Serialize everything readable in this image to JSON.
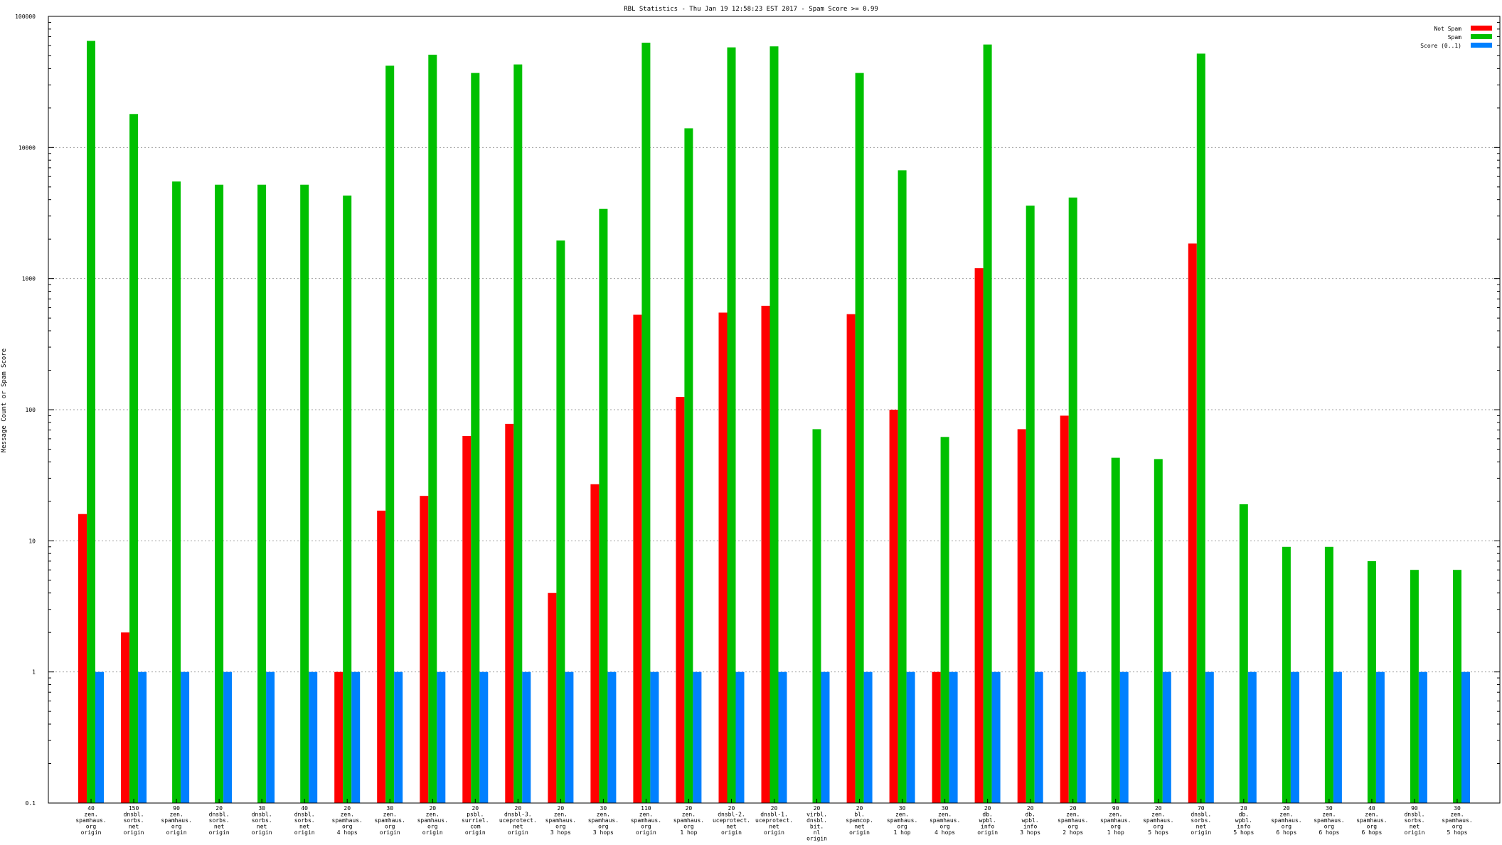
{
  "chart_data": {
    "type": "bar",
    "title": "RBL Statistics - Thu Jan 19 12:58:23 EST 2017 - Spam Score >= 0.99",
    "xlabel": "",
    "ylabel": "Message Count or Spam Score",
    "scale": "log",
    "ylim": [
      0.1,
      100000
    ],
    "yticks": [
      "0.1",
      "1",
      "10",
      "100",
      "1000",
      "10000",
      "100000"
    ],
    "grid": true,
    "legend_position": "top-right",
    "categories": [
      [
        "40",
        "zen.",
        "spamhaus.",
        "org",
        "origin"
      ],
      [
        "150",
        "dnsbl.",
        "sorbs.",
        "net",
        "origin"
      ],
      [
        "90",
        "zen.",
        "spamhaus.",
        "org",
        "origin"
      ],
      [
        "20",
        "dnsbl.",
        "sorbs.",
        "net",
        "origin"
      ],
      [
        "30",
        "dnsbl.",
        "sorbs.",
        "net",
        "origin"
      ],
      [
        "40",
        "dnsbl.",
        "sorbs.",
        "net",
        "origin"
      ],
      [
        "20",
        "zen.",
        "spamhaus.",
        "org",
        "4 hops"
      ],
      [
        "30",
        "zen.",
        "spamhaus.",
        "org",
        "origin"
      ],
      [
        "20",
        "zen.",
        "spamhaus.",
        "org",
        "origin"
      ],
      [
        "20",
        "psbl.",
        "surriel.",
        "com",
        "origin"
      ],
      [
        "20",
        "dnsbl-3.",
        "uceprotect.",
        "net",
        "origin"
      ],
      [
        "20",
        "zen.",
        "spamhaus.",
        "org",
        "3 hops"
      ],
      [
        "30",
        "zen.",
        "spamhaus.",
        "org",
        "3 hops"
      ],
      [
        "110",
        "zen.",
        "spamhaus.",
        "org",
        "origin"
      ],
      [
        "20",
        "zen.",
        "spamhaus.",
        "org",
        "1 hop"
      ],
      [
        "20",
        "dnsbl-2.",
        "uceprotect.",
        "net",
        "origin"
      ],
      [
        "20",
        "dnsbl-1.",
        "uceprotect.",
        "net",
        "origin"
      ],
      [
        "20",
        "virbl.",
        "dnsbl.",
        "bit.",
        "nl",
        "origin"
      ],
      [
        "20",
        "bl.",
        "spamcop.",
        "net",
        "origin"
      ],
      [
        "30",
        "zen.",
        "spamhaus.",
        "org",
        "1 hop"
      ],
      [
        "30",
        "zen.",
        "spamhaus.",
        "org",
        "4 hops"
      ],
      [
        "20",
        "db.",
        "wpbl.",
        "info",
        "origin"
      ],
      [
        "20",
        "db.",
        "wpbl.",
        "info",
        "3 hops"
      ],
      [
        "20",
        "zen.",
        "spamhaus.",
        "org",
        "2 hops"
      ],
      [
        "90",
        "zen.",
        "spamhaus.",
        "org",
        "1 hop"
      ],
      [
        "20",
        "zen.",
        "spamhaus.",
        "org",
        "5 hops"
      ],
      [
        "70",
        "dnsbl.",
        "sorbs.",
        "net",
        "origin"
      ],
      [
        "20",
        "db.",
        "wpbl.",
        "info",
        "5 hops"
      ],
      [
        "20",
        "zen.",
        "spamhaus.",
        "org",
        "6 hops"
      ],
      [
        "30",
        "zen.",
        "spamhaus.",
        "org",
        "6 hops"
      ],
      [
        "40",
        "zen.",
        "spamhaus.",
        "org",
        "6 hops"
      ],
      [
        "90",
        "dnsbl.",
        "sorbs.",
        "net",
        "origin"
      ],
      [
        "30",
        "zen.",
        "spamhaus.",
        "org",
        "5 hops"
      ]
    ],
    "series": [
      {
        "name": "Not Spam",
        "color": "#ff0000",
        "values": [
          16,
          2,
          null,
          null,
          null,
          null,
          1,
          17,
          22,
          63,
          78,
          4,
          27,
          530,
          125,
          550,
          620,
          null,
          535,
          100,
          1,
          1200,
          71,
          90,
          null,
          null,
          1850,
          null,
          null,
          null,
          null,
          null,
          null
        ]
      },
      {
        "name": "Spam",
        "color": "#00c000",
        "values": [
          65000,
          18000,
          5500,
          5200,
          5200,
          5200,
          4300,
          42000,
          51000,
          37000,
          43000,
          1950,
          3400,
          63000,
          14000,
          58000,
          59000,
          71,
          37000,
          6700,
          62,
          61000,
          3600,
          4150,
          43,
          42,
          52000,
          19,
          9,
          9,
          7,
          6,
          6
        ]
      },
      {
        "name": "Score (0..1)",
        "color": "#0080ff",
        "values": [
          1,
          1,
          1,
          1,
          1,
          1,
          1,
          1,
          1,
          1,
          1,
          1,
          1,
          1,
          1,
          1,
          1,
          1,
          1,
          1,
          1,
          1,
          1,
          1,
          1,
          1,
          1,
          1,
          1,
          1,
          1,
          1,
          1
        ]
      }
    ]
  }
}
